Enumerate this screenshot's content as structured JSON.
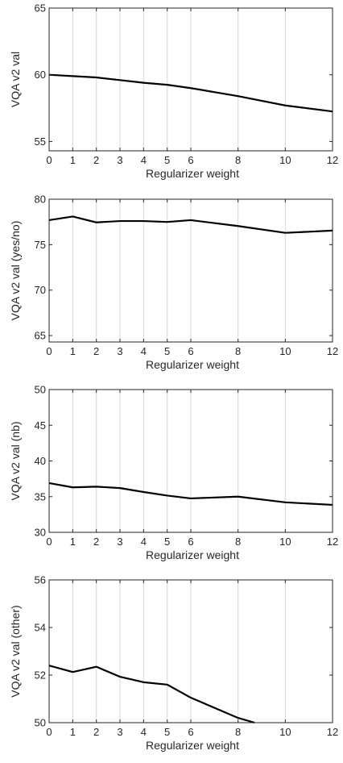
{
  "chart_data": [
    {
      "type": "line",
      "title": "",
      "xlabel": "Regularizer weight",
      "ylabel": "VQA v2 val",
      "x": [
        0,
        1,
        2,
        3,
        4,
        5,
        6,
        8,
        10,
        12
      ],
      "xticks": [
        0,
        1,
        2,
        3,
        4,
        5,
        6,
        8,
        10,
        12
      ],
      "xlim": [
        0,
        12
      ],
      "ylim": [
        54.3,
        65
      ],
      "yticks": [
        55,
        60,
        65
      ],
      "series": [
        {
          "values": [
            60.0,
            59.9,
            59.8,
            59.6,
            59.4,
            59.25,
            59.0,
            58.4,
            57.7,
            57.25
          ]
        }
      ],
      "grid": "vertical lines at x ticks",
      "line_color": "#000000"
    },
    {
      "type": "line",
      "title": "",
      "xlabel": "Regularizer weight",
      "ylabel": "VQA v2 val (yes/no)",
      "x": [
        0,
        1,
        2,
        3,
        4,
        5,
        6,
        8,
        10,
        12
      ],
      "xticks": [
        0,
        1,
        2,
        3,
        4,
        5,
        6,
        8,
        10,
        12
      ],
      "xlim": [
        0,
        12
      ],
      "ylim": [
        64.3,
        80
      ],
      "yticks": [
        65,
        70,
        75,
        80
      ],
      "series": [
        {
          "values": [
            77.7,
            78.1,
            77.45,
            77.6,
            77.6,
            77.5,
            77.7,
            77.05,
            76.3,
            76.55
          ]
        }
      ],
      "grid": "vertical lines at x ticks",
      "line_color": "#000000"
    },
    {
      "type": "line",
      "title": "",
      "xlabel": "Regularizer weight",
      "ylabel": "VQA v2 val (nb)",
      "x": [
        0,
        1,
        2,
        3,
        4,
        5,
        6,
        8,
        10,
        12
      ],
      "xticks": [
        0,
        1,
        2,
        3,
        4,
        5,
        6,
        8,
        10,
        12
      ],
      "xlim": [
        0,
        12
      ],
      "ylim": [
        30,
        50
      ],
      "yticks": [
        30,
        35,
        40,
        45,
        50
      ],
      "series": [
        {
          "values": [
            36.9,
            36.3,
            36.4,
            36.2,
            35.65,
            35.15,
            34.75,
            35.0,
            34.2,
            33.85
          ]
        }
      ],
      "grid": "vertical lines at x ticks",
      "line_color": "#000000"
    },
    {
      "type": "line",
      "title": "",
      "xlabel": "Regularizer weight",
      "ylabel": "VQA v2 val (other)",
      "x": [
        0,
        1,
        2,
        3,
        4,
        5,
        6,
        8,
        8.7
      ],
      "xticks": [
        0,
        1,
        2,
        3,
        4,
        5,
        6,
        8,
        10,
        12
      ],
      "xlim": [
        0,
        12
      ],
      "ylim": [
        50,
        56
      ],
      "yticks": [
        50,
        52,
        54,
        56
      ],
      "series": [
        {
          "values": [
            52.4,
            52.13,
            52.35,
            51.93,
            51.7,
            51.6,
            51.05,
            50.2,
            50.0
          ]
        }
      ],
      "grid": "vertical lines at x ticks",
      "line_color": "#000000"
    }
  ]
}
